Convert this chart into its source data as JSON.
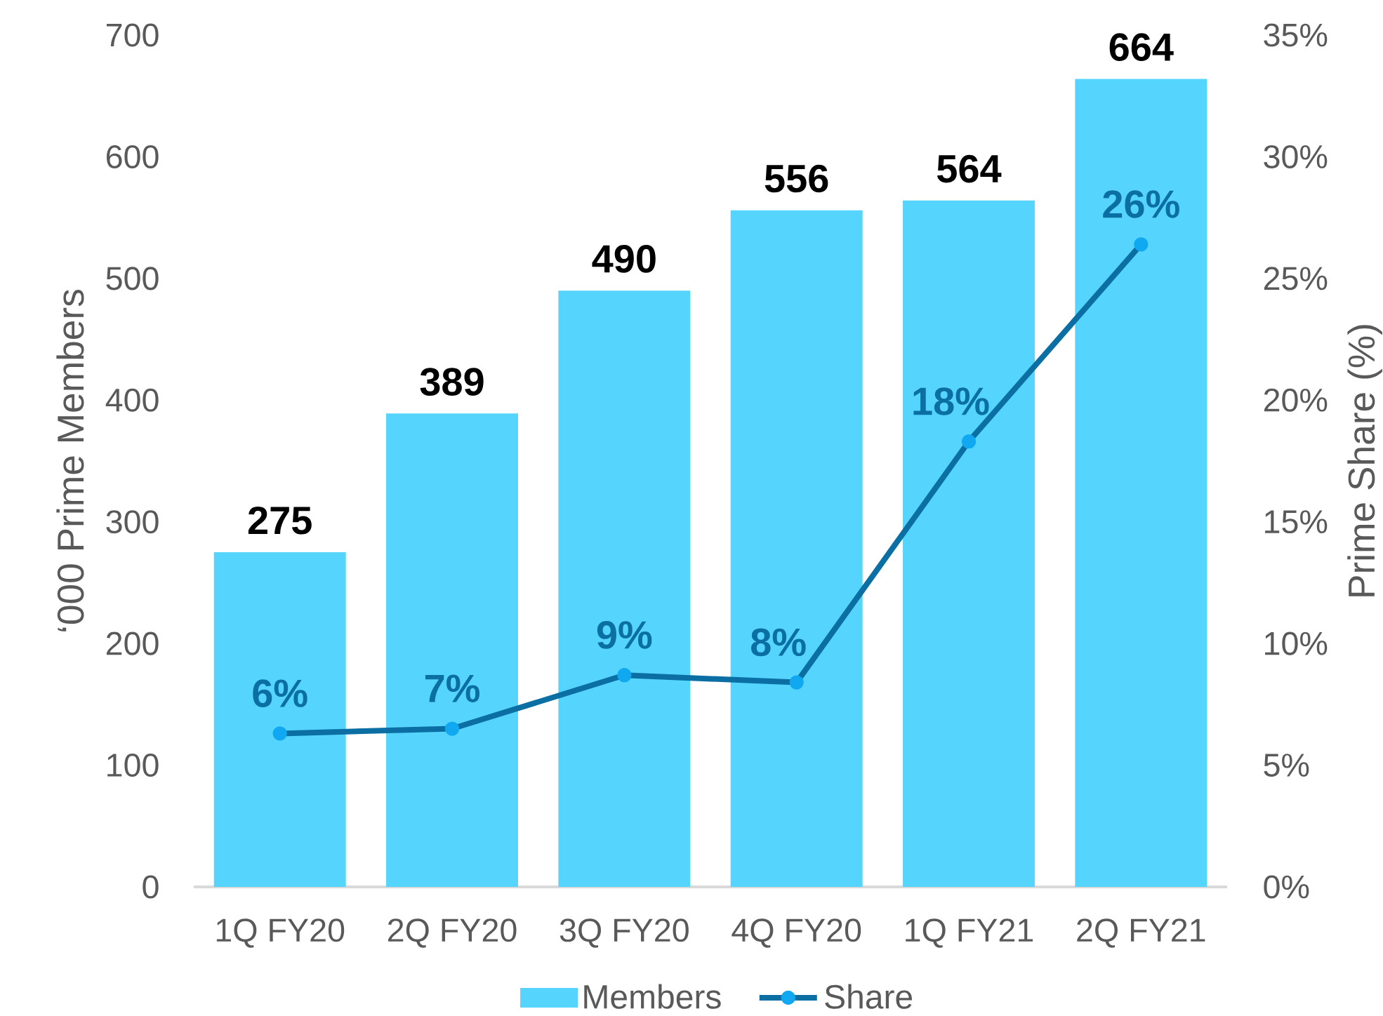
{
  "chart_data": {
    "type": "bar",
    "categories": [
      "1Q FY20",
      "2Q FY20",
      "3Q FY20",
      "4Q FY20",
      "1Q FY21",
      "2Q FY21"
    ],
    "ylabel": "‘000 Prime Members",
    "y2label": "Prime Share (%)",
    "ylim": [
      0,
      700
    ],
    "yticks": [
      0,
      100,
      200,
      300,
      400,
      500,
      600,
      700
    ],
    "y2lim": [
      0,
      35
    ],
    "y2ticks": [
      {
        "value": 0,
        "label": "0%"
      },
      {
        "value": 5,
        "label": "5%"
      },
      {
        "value": 10,
        "label": "10%"
      },
      {
        "value": 15,
        "label": "15%"
      },
      {
        "value": 20,
        "label": "20%"
      },
      {
        "value": 25,
        "label": "25%"
      },
      {
        "value": 30,
        "label": "30%"
      },
      {
        "value": 35,
        "label": "35%"
      }
    ],
    "series": [
      {
        "name": "Members",
        "color": "#55d4fe",
        "values": [
          275,
          389,
          490,
          556,
          564,
          664
        ],
        "value_labels": [
          "275",
          "389",
          "490",
          "556",
          "564",
          "664"
        ]
      },
      {
        "name": "Share",
        "type": "line",
        "axis": "y2",
        "color": "#0b6fa4",
        "values": [
          6.3,
          6.5,
          8.7,
          8.4,
          18.3,
          26.4
        ],
        "value_labels": [
          "6%",
          "7%",
          "9%",
          "8%",
          "18%",
          "26%"
        ]
      }
    ],
    "legend": "bottom",
    "marker": "circle"
  }
}
